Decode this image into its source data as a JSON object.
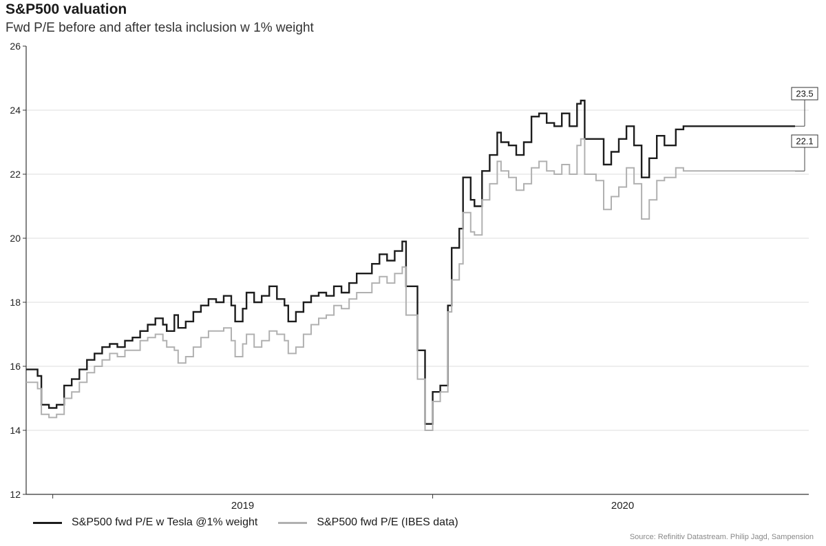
{
  "chart_data": {
    "type": "line",
    "title": "S&P500 valuation",
    "subtitle": "Fwd P/E before and after tesla inclusion w 1% weight",
    "ylim": [
      12,
      26
    ],
    "y_ticks": [
      "12",
      "14",
      "16",
      "18",
      "20",
      "22",
      "24",
      "26"
    ],
    "x_ticks": [
      {
        "label": "2019",
        "x": 2019.5
      },
      {
        "label": "2020",
        "x": 2020.5
      }
    ],
    "xlim": [
      2018.93,
      2020.99
    ],
    "grid": true,
    "legend_position": "bottom-left",
    "series": [
      {
        "name": "S&P500 fwd P/E w Tesla @1% weight",
        "color": "#1c1c1c",
        "end_label": "23.5",
        "points": [
          [
            2018.93,
            15.9
          ],
          [
            2018.96,
            15.7
          ],
          [
            2018.97,
            14.8
          ],
          [
            2018.99,
            14.7
          ],
          [
            2019.01,
            14.8
          ],
          [
            2019.03,
            15.4
          ],
          [
            2019.05,
            15.6
          ],
          [
            2019.07,
            15.9
          ],
          [
            2019.09,
            16.2
          ],
          [
            2019.11,
            16.4
          ],
          [
            2019.13,
            16.6
          ],
          [
            2019.15,
            16.7
          ],
          [
            2019.17,
            16.6
          ],
          [
            2019.19,
            16.8
          ],
          [
            2019.21,
            16.9
          ],
          [
            2019.23,
            17.1
          ],
          [
            2019.25,
            17.3
          ],
          [
            2019.27,
            17.5
          ],
          [
            2019.29,
            17.3
          ],
          [
            2019.3,
            17.1
          ],
          [
            2019.32,
            17.6
          ],
          [
            2019.33,
            17.2
          ],
          [
            2019.35,
            17.4
          ],
          [
            2019.37,
            17.7
          ],
          [
            2019.39,
            17.9
          ],
          [
            2019.41,
            18.1
          ],
          [
            2019.43,
            18.0
          ],
          [
            2019.45,
            18.2
          ],
          [
            2019.47,
            17.9
          ],
          [
            2019.48,
            17.4
          ],
          [
            2019.5,
            17.8
          ],
          [
            2019.51,
            18.3
          ],
          [
            2019.53,
            18.0
          ],
          [
            2019.55,
            18.2
          ],
          [
            2019.57,
            18.5
          ],
          [
            2019.59,
            18.1
          ],
          [
            2019.61,
            17.9
          ],
          [
            2019.62,
            17.4
          ],
          [
            2019.64,
            17.7
          ],
          [
            2019.66,
            18.0
          ],
          [
            2019.68,
            18.2
          ],
          [
            2019.7,
            18.3
          ],
          [
            2019.72,
            18.2
          ],
          [
            2019.74,
            18.5
          ],
          [
            2019.76,
            18.3
          ],
          [
            2019.78,
            18.6
          ],
          [
            2019.8,
            18.9
          ],
          [
            2019.82,
            18.9
          ],
          [
            2019.84,
            19.2
          ],
          [
            2019.86,
            19.5
          ],
          [
            2019.88,
            19.3
          ],
          [
            2019.9,
            19.6
          ],
          [
            2019.92,
            19.9
          ],
          [
            2019.93,
            18.5
          ],
          [
            2019.95,
            18.5
          ],
          [
            2019.96,
            16.5
          ],
          [
            2019.98,
            14.2
          ],
          [
            2020.0,
            15.2
          ],
          [
            2020.02,
            15.4
          ],
          [
            2020.04,
            17.9
          ],
          [
            2020.05,
            19.7
          ],
          [
            2020.07,
            20.3
          ],
          [
            2020.08,
            21.9
          ],
          [
            2020.1,
            21.2
          ],
          [
            2020.11,
            21.0
          ],
          [
            2020.13,
            22.1
          ],
          [
            2020.15,
            22.6
          ],
          [
            2020.17,
            23.3
          ],
          [
            2020.18,
            23.0
          ],
          [
            2020.2,
            22.9
          ],
          [
            2020.22,
            22.6
          ],
          [
            2020.24,
            23.0
          ],
          [
            2020.26,
            23.8
          ],
          [
            2020.28,
            23.9
          ],
          [
            2020.3,
            23.6
          ],
          [
            2020.32,
            23.5
          ],
          [
            2020.34,
            23.9
          ],
          [
            2020.36,
            23.5
          ],
          [
            2020.38,
            24.2
          ],
          [
            2020.39,
            24.3
          ],
          [
            2020.4,
            23.1
          ],
          [
            2020.43,
            23.1
          ],
          [
            2020.45,
            22.3
          ],
          [
            2020.47,
            22.7
          ],
          [
            2020.49,
            23.1
          ],
          [
            2020.51,
            23.5
          ],
          [
            2020.53,
            22.9
          ],
          [
            2020.55,
            21.9
          ],
          [
            2020.57,
            22.5
          ],
          [
            2020.59,
            23.2
          ],
          [
            2020.61,
            22.9
          ],
          [
            2020.64,
            23.4
          ],
          [
            2020.66,
            23.5
          ],
          [
            2020.67,
            23.5
          ]
        ]
      },
      {
        "name": "S&P500 fwd P/E (IBES data)",
        "color": "#b0b0b0",
        "end_label": "22.1",
        "points": [
          [
            2018.93,
            15.5
          ],
          [
            2018.96,
            15.3
          ],
          [
            2018.97,
            14.5
          ],
          [
            2018.99,
            14.4
          ],
          [
            2019.01,
            14.5
          ],
          [
            2019.03,
            15.0
          ],
          [
            2019.05,
            15.2
          ],
          [
            2019.07,
            15.5
          ],
          [
            2019.09,
            15.8
          ],
          [
            2019.11,
            16.0
          ],
          [
            2019.13,
            16.2
          ],
          [
            2019.15,
            16.4
          ],
          [
            2019.17,
            16.3
          ],
          [
            2019.19,
            16.5
          ],
          [
            2019.21,
            16.5
          ],
          [
            2019.23,
            16.8
          ],
          [
            2019.25,
            16.9
          ],
          [
            2019.27,
            17.0
          ],
          [
            2019.29,
            16.8
          ],
          [
            2019.3,
            16.6
          ],
          [
            2019.32,
            16.5
          ],
          [
            2019.33,
            16.1
          ],
          [
            2019.35,
            16.3
          ],
          [
            2019.37,
            16.6
          ],
          [
            2019.39,
            16.9
          ],
          [
            2019.41,
            17.1
          ],
          [
            2019.43,
            17.1
          ],
          [
            2019.45,
            17.2
          ],
          [
            2019.47,
            16.8
          ],
          [
            2019.48,
            16.3
          ],
          [
            2019.5,
            16.7
          ],
          [
            2019.51,
            17.0
          ],
          [
            2019.53,
            16.6
          ],
          [
            2019.55,
            16.8
          ],
          [
            2019.57,
            17.1
          ],
          [
            2019.59,
            17.0
          ],
          [
            2019.61,
            16.8
          ],
          [
            2019.62,
            16.4
          ],
          [
            2019.64,
            16.6
          ],
          [
            2019.66,
            17.0
          ],
          [
            2019.68,
            17.3
          ],
          [
            2019.7,
            17.5
          ],
          [
            2019.72,
            17.6
          ],
          [
            2019.74,
            17.9
          ],
          [
            2019.76,
            17.8
          ],
          [
            2019.78,
            18.1
          ],
          [
            2019.8,
            18.3
          ],
          [
            2019.82,
            18.3
          ],
          [
            2019.84,
            18.6
          ],
          [
            2019.86,
            18.8
          ],
          [
            2019.88,
            18.6
          ],
          [
            2019.9,
            18.9
          ],
          [
            2019.92,
            19.1
          ],
          [
            2019.93,
            17.6
          ],
          [
            2019.95,
            17.6
          ],
          [
            2019.96,
            15.6
          ],
          [
            2019.98,
            14.0
          ],
          [
            2020.0,
            14.9
          ],
          [
            2020.02,
            15.2
          ],
          [
            2020.04,
            17.7
          ],
          [
            2020.05,
            18.7
          ],
          [
            2020.07,
            19.2
          ],
          [
            2020.08,
            20.8
          ],
          [
            2020.1,
            20.2
          ],
          [
            2020.11,
            20.1
          ],
          [
            2020.13,
            21.2
          ],
          [
            2020.15,
            21.7
          ],
          [
            2020.17,
            22.4
          ],
          [
            2020.18,
            22.1
          ],
          [
            2020.2,
            21.9
          ],
          [
            2020.22,
            21.5
          ],
          [
            2020.24,
            21.7
          ],
          [
            2020.26,
            22.2
          ],
          [
            2020.28,
            22.4
          ],
          [
            2020.3,
            22.1
          ],
          [
            2020.32,
            22.0
          ],
          [
            2020.34,
            22.3
          ],
          [
            2020.36,
            22.0
          ],
          [
            2020.38,
            22.9
          ],
          [
            2020.39,
            23.1
          ],
          [
            2020.4,
            22.0
          ],
          [
            2020.43,
            21.8
          ],
          [
            2020.45,
            20.9
          ],
          [
            2020.47,
            21.3
          ],
          [
            2020.49,
            21.6
          ],
          [
            2020.51,
            22.2
          ],
          [
            2020.53,
            21.7
          ],
          [
            2020.55,
            20.6
          ],
          [
            2020.57,
            21.2
          ],
          [
            2020.59,
            21.8
          ],
          [
            2020.61,
            21.9
          ],
          [
            2020.64,
            22.2
          ],
          [
            2020.66,
            22.1
          ],
          [
            2020.67,
            22.1
          ]
        ]
      }
    ]
  },
  "source": "Source: Refinitiv Datastream. Philip Jagd, Sampension"
}
